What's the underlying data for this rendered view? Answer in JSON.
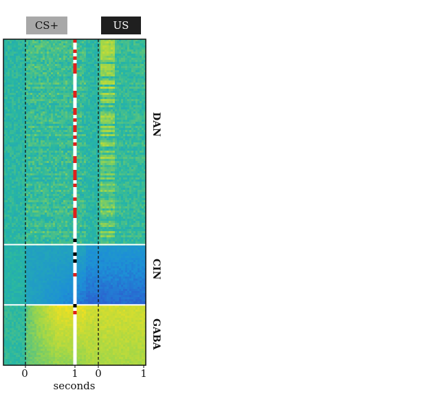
{
  "chart_data": {
    "type": "heatmap",
    "event_tags": [
      {
        "label": "CS+",
        "color": "#a8a8a8"
      },
      {
        "label": "US",
        "color": "#1f1f1f"
      }
    ],
    "x_tick_labels": [
      "0",
      "1",
      "0",
      "1"
    ],
    "x_segments": [
      {
        "event": "CS+",
        "range_s": [
          -0.4,
          1.0
        ]
      },
      {
        "event": "US",
        "range_s": [
          0,
          1.0
        ]
      }
    ],
    "xlabel": "seconds",
    "ylabel": "",
    "groups": [
      {
        "name": "DAN",
        "row_fraction_start": 0.0,
        "row_fraction_end": 0.63,
        "response": "strong activation after CS+ and US (yellow), peak ~0.2 s after US"
      },
      {
        "name": "CIN",
        "row_fraction_start": 0.63,
        "row_fraction_end": 0.815,
        "response": "suppression after CS+ (blue)"
      },
      {
        "name": "GABA",
        "row_fraction_start": 0.815,
        "row_fraction_end": 1.0,
        "response": "sustained activation from CS+ through US (yellow)"
      }
    ],
    "colormap": [
      "#3a30c8",
      "#1d8fd6",
      "#27b6a4",
      "#9ed64a",
      "#f5e11f"
    ],
    "dashed_lines_at_s": [
      0,
      1
    ],
    "divider_color": "#ffffff",
    "marker_colors": {
      "white": "#ffffff",
      "red": "#e0201c",
      "black": "#000000"
    }
  },
  "labels": {
    "cs": "CS+",
    "us": "US",
    "dan": "DAN",
    "cin": "CIN",
    "gaba": "GABA",
    "tick0": "0",
    "tick1": "1",
    "tick2": "0",
    "tick3": "1",
    "xlabel": "seconds"
  }
}
